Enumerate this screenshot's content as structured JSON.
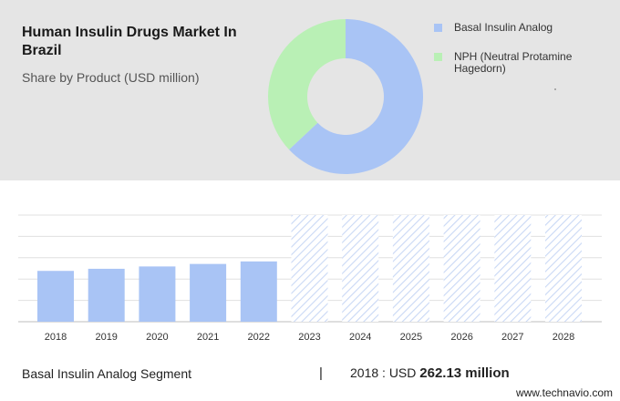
{
  "header": {
    "title": "Human Insulin Drugs Market In Brazil",
    "subtitle": "Share by Product (USD million)"
  },
  "legend": [
    {
      "label": "Basal Insulin Analog",
      "color": "#a9c4f5"
    },
    {
      "label": "NPH (Neutral Protamine Hagedorn)",
      "color": "#b9f0b5"
    }
  ],
  "footer": {
    "segment": "Basal Insulin Analog Segment",
    "divider": "|",
    "year_label": "2018 : USD",
    "value_label": "262.13 million"
  },
  "watermark": "www.technavio.com",
  "chart_data": [
    {
      "type": "pie",
      "style": "donut",
      "categories": [
        "Basal Insulin Analog",
        "NPH (Neutral Protamine Hagedorn)"
      ],
      "values": [
        63,
        37
      ],
      "colors": [
        "#a9c4f5",
        "#b9f0b5"
      ]
    },
    {
      "type": "bar",
      "categories": [
        "2018",
        "2019",
        "2020",
        "2021",
        "2022",
        "2023",
        "2024",
        "2025",
        "2026",
        "2027",
        "2028"
      ],
      "values": [
        262.13,
        273,
        285,
        298,
        311,
        null,
        null,
        null,
        null,
        null,
        null
      ],
      "forecast_from": "2023",
      "ylim": [
        0,
        550
      ],
      "grid": true,
      "bar_color": "#a9c4f5",
      "forecast_fill": "hatched"
    }
  ]
}
